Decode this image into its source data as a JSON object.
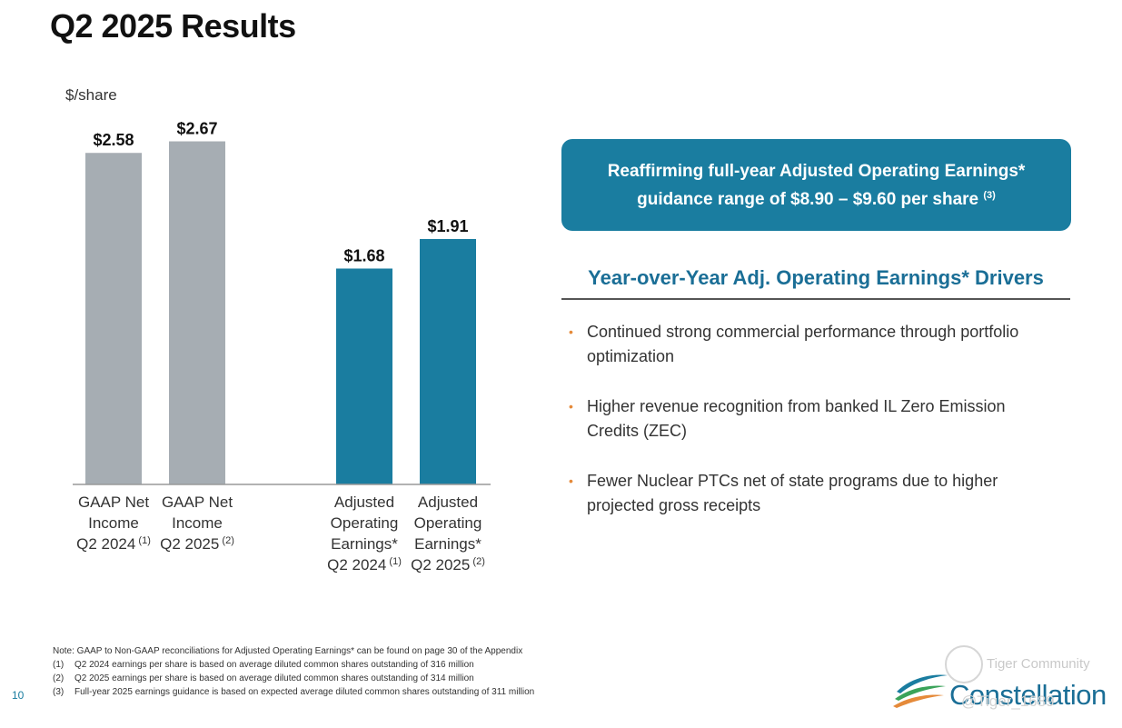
{
  "page": {
    "title": "Q2 2025 Results",
    "unit_label": "$/share",
    "page_number": "10"
  },
  "chart_data": {
    "type": "bar",
    "title": "",
    "ylabel": "$/share",
    "ylim": [
      0,
      2.9
    ],
    "bars": [
      {
        "lines": [
          "GAAP Net",
          "Income",
          "Q2 2024"
        ],
        "footnote": "(1)",
        "value": 2.58,
        "label": "$2.58",
        "color": "#a6adb3"
      },
      {
        "lines": [
          "GAAP Net",
          "Income",
          "Q2 2025"
        ],
        "footnote": "(2)",
        "value": 2.67,
        "label": "$2.67",
        "color": "#a6adb3"
      },
      {
        "lines": [
          "Adjusted",
          "Operating",
          "Earnings*",
          "Q2 2024"
        ],
        "footnote": "(1)",
        "value": 1.68,
        "label": "$1.68",
        "color": "#1a7da0"
      },
      {
        "lines": [
          "Adjusted",
          "Operating",
          "Earnings*",
          "Q2 2025"
        ],
        "footnote": "(2)",
        "value": 1.91,
        "label": "$1.91",
        "color": "#1a7da0"
      }
    ]
  },
  "guidance": {
    "line1": "Reaffirming full-year Adjusted Operating Earnings*",
    "line2": "guidance range of $8.90 – $9.60 per share",
    "footnote": "(3)"
  },
  "drivers": {
    "title": "Year-over-Year Adj. Operating Earnings* Drivers",
    "items": [
      "Continued strong commercial performance through portfolio optimization",
      "Higher revenue recognition from banked IL Zero Emission Credits (ZEC)",
      "Fewer Nuclear PTCs net of state programs due to higher projected gross receipts"
    ]
  },
  "notes": {
    "header": "Note: GAAP to Non-GAAP reconciliations for Adjusted Operating Earnings* can be found on page 30 of the Appendix",
    "items": [
      {
        "num": "(1)",
        "text": "Q2 2024 earnings per share is based on average diluted common shares outstanding of 316 million"
      },
      {
        "num": "(2)",
        "text": "Q2 2025 earnings per share is based on average diluted common shares outstanding of 314 million"
      },
      {
        "num": "(3)",
        "text": "Full-year 2025 earnings guidance is based on expected average diluted common shares outstanding of 311 million"
      }
    ]
  },
  "branding": {
    "logo_text": "Constellation",
    "watermark_text": "Tiger Community",
    "watermark_handle": "@Tiger_1689"
  },
  "colors": {
    "gaap_bar": "#a6adb3",
    "adjusted_bar": "#1a7da0",
    "accent": "#1a6e96",
    "bullet": "#e58a3a"
  }
}
